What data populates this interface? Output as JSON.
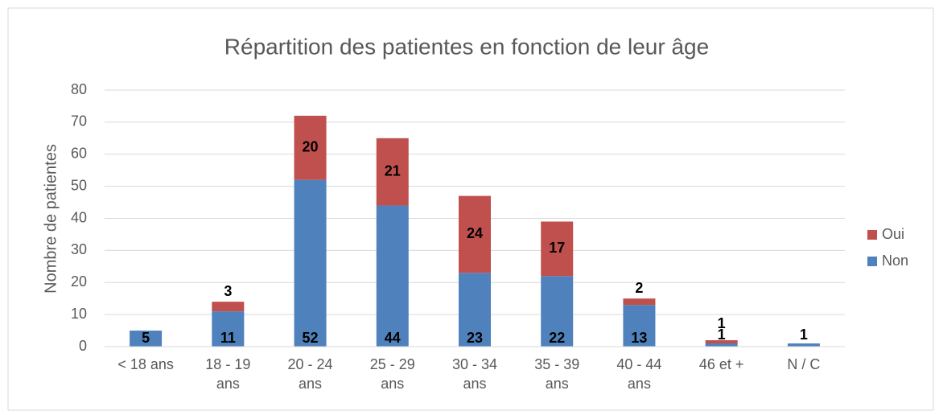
{
  "chart_data": {
    "type": "stacked_bar",
    "title": "Répartition des patientes en fonction de leur âge",
    "y_label": "Nombre de patientes",
    "categories": [
      "< 18 ans",
      "18 - 19 ans",
      "20 - 24 ans",
      "25 - 29 ans",
      "30 - 34 ans",
      "35 - 39 ans",
      "40 - 44 ans",
      "46 et +",
      "N / C"
    ],
    "series": [
      {
        "name": "Non",
        "color": "#4f81bd",
        "values": [
          5,
          11,
          52,
          44,
          23,
          22,
          13,
          1,
          1
        ]
      },
      {
        "name": "Oui",
        "color": "#c0504d",
        "values": [
          null,
          3,
          20,
          21,
          24,
          17,
          2,
          1,
          null
        ]
      }
    ],
    "ylim": [
      0,
      80
    ],
    "yticks": [
      0,
      10,
      20,
      30,
      40,
      50,
      60,
      70,
      80
    ],
    "grid": true,
    "legend": "right"
  }
}
